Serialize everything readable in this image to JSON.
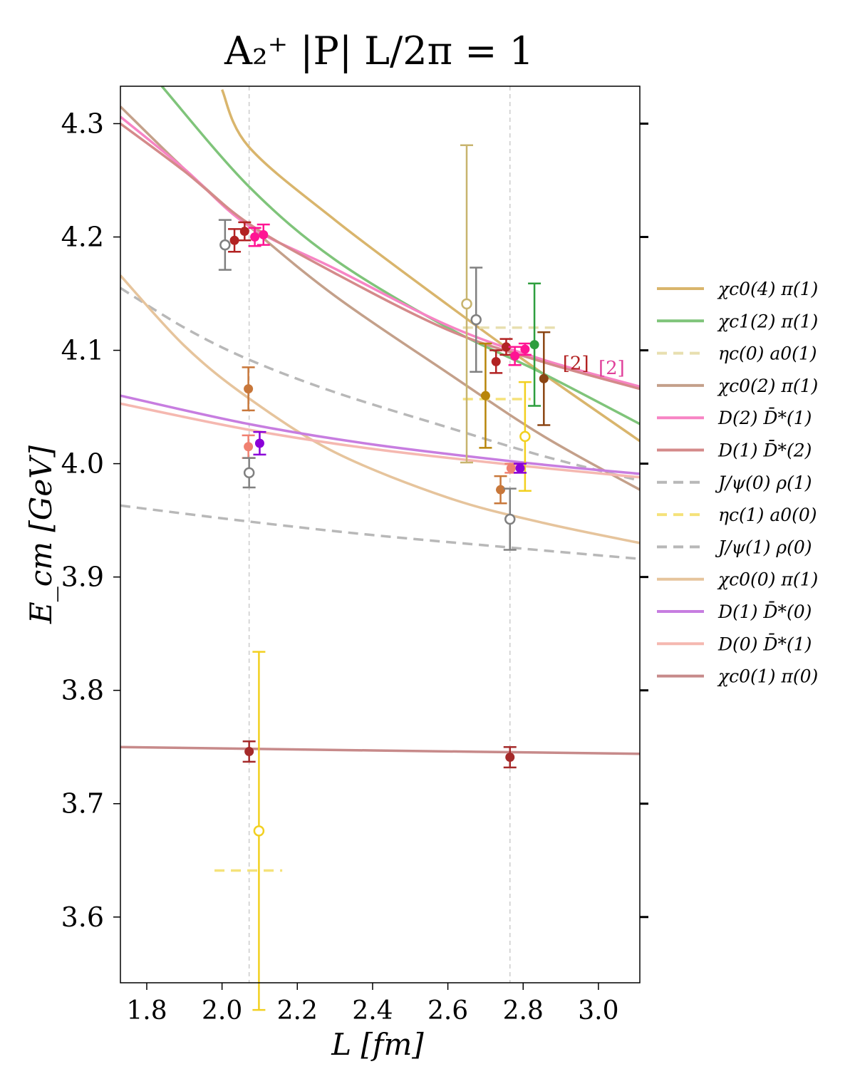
{
  "chart_data": {
    "type": "scatter",
    "title": "A₂⁺ |P| L/2π = 1",
    "xlabel": "L [fm]",
    "ylabel": "E_cm [GeV]",
    "xlim": [
      1.73,
      3.11
    ],
    "ylim": [
      3.542,
      4.333
    ],
    "xticks": [
      "1.8",
      "2.0",
      "2.2",
      "2.4",
      "2.6",
      "2.8",
      "3.0"
    ],
    "yticks": [
      "3.6",
      "3.7",
      "3.8",
      "3.9",
      "4.0",
      "4.1",
      "4.2",
      "4.3"
    ],
    "grid": false,
    "legend_position": "right",
    "vlines": [
      2.072,
      2.765
    ],
    "curves": [
      {
        "name": "χc0(4) π(1)",
        "color": "#d9b56c",
        "style": "solid",
        "points": [
          [
            2.0,
            4.33
          ],
          [
            2.07,
            4.28
          ],
          [
            2.3,
            4.215
          ],
          [
            2.6,
            4.14
          ],
          [
            2.85,
            4.08
          ],
          [
            3.11,
            4.02
          ]
        ]
      },
      {
        "name": "χc1(2) π(1)",
        "color": "#7fc47a",
        "style": "solid",
        "points": [
          [
            1.84,
            4.333
          ],
          [
            2.07,
            4.245
          ],
          [
            2.3,
            4.18
          ],
          [
            2.6,
            4.12
          ],
          [
            2.85,
            4.08
          ],
          [
            3.11,
            4.035
          ]
        ]
      },
      {
        "name": "χc0(2) π(1)",
        "color": "#c4a08a",
        "style": "solid",
        "points": [
          [
            1.73,
            4.315
          ],
          [
            1.9,
            4.26
          ],
          [
            2.07,
            4.21
          ],
          [
            2.3,
            4.148
          ],
          [
            2.6,
            4.08
          ],
          [
            2.85,
            4.025
          ],
          [
            3.11,
            3.977
          ]
        ]
      },
      {
        "name": "D(2) D̄*(1)",
        "color": "#f784c4",
        "style": "solid",
        "points": [
          [
            1.73,
            4.306
          ],
          [
            1.9,
            4.26
          ],
          [
            2.07,
            4.21
          ],
          [
            2.3,
            4.172
          ],
          [
            2.6,
            4.122
          ],
          [
            2.85,
            4.092
          ],
          [
            3.11,
            4.068
          ]
        ]
      },
      {
        "name": "D(1) D̄*(2)",
        "color": "#d48a8a",
        "style": "solid",
        "points": [
          [
            1.73,
            4.3
          ],
          [
            1.9,
            4.258
          ],
          [
            2.07,
            4.212
          ],
          [
            2.3,
            4.168
          ],
          [
            2.6,
            4.118
          ],
          [
            2.85,
            4.09
          ],
          [
            3.11,
            4.066
          ]
        ]
      },
      {
        "name": "J/ψ(0) ρ(1)",
        "color": "#b8b8b8",
        "style": "dashed",
        "points": [
          [
            1.73,
            4.155
          ],
          [
            1.9,
            4.12
          ],
          [
            2.07,
            4.092
          ],
          [
            2.3,
            4.063
          ],
          [
            2.6,
            4.032
          ],
          [
            2.85,
            4.007
          ],
          [
            3.11,
            3.985
          ]
        ]
      },
      {
        "name": "J/ψ(1) ρ(0)",
        "color": "#b8b8b8",
        "style": "dashed",
        "points": [
          [
            1.73,
            3.963
          ],
          [
            2.07,
            3.949
          ],
          [
            2.4,
            3.937
          ],
          [
            2.8,
            3.925
          ],
          [
            3.11,
            3.916
          ]
        ]
      },
      {
        "name": "χc0(0) π(1)",
        "color": "#e6c49c",
        "style": "solid",
        "points": [
          [
            1.73,
            4.166
          ],
          [
            1.9,
            4.104
          ],
          [
            2.07,
            4.058
          ],
          [
            2.3,
            4.01
          ],
          [
            2.6,
            3.97
          ],
          [
            2.85,
            3.948
          ],
          [
            3.11,
            3.93
          ]
        ]
      },
      {
        "name": "D(1) D̄*(0)",
        "color": "#c77de0",
        "style": "solid",
        "points": [
          [
            1.73,
            4.06
          ],
          [
            2.07,
            4.035
          ],
          [
            2.4,
            4.017
          ],
          [
            2.8,
            4.001
          ],
          [
            3.11,
            3.991
          ]
        ]
      },
      {
        "name": "D(0) D̄*(1)",
        "color": "#f5b8b0",
        "style": "solid",
        "points": [
          [
            1.73,
            4.053
          ],
          [
            2.07,
            4.03
          ],
          [
            2.4,
            4.013
          ],
          [
            2.8,
            3.998
          ],
          [
            3.11,
            3.988
          ]
        ]
      },
      {
        "name": "χc0(1) π(0)",
        "color": "#c78a8a",
        "style": "solid",
        "points": [
          [
            1.73,
            3.75
          ],
          [
            2.4,
            3.747
          ],
          [
            3.11,
            3.744
          ]
        ]
      }
    ],
    "hsegments": [
      {
        "name": "ηc(0) a0(1)",
        "color": "#e8dfb0",
        "y": 4.12,
        "x": [
          2.64,
          2.9
        ]
      },
      {
        "name": "ηc(1) a0(0)",
        "color": "#f5e27a",
        "y": 4.057,
        "x": [
          2.64,
          2.82
        ]
      },
      {
        "name": "ηc(1) a0(0)",
        "color": "#f5e27a",
        "y": 3.641,
        "x": [
          1.98,
          2.16
        ]
      }
    ],
    "points": [
      {
        "x": 2.008,
        "y": 4.193,
        "err": 0.022,
        "color": "#808080",
        "open": true
      },
      {
        "x": 2.033,
        "y": 4.197,
        "err": 0.01,
        "color": "#b22222",
        "open": false
      },
      {
        "x": 2.06,
        "y": 4.205,
        "err": 0.008,
        "color": "#b22222",
        "open": false
      },
      {
        "x": 2.087,
        "y": 4.2,
        "err": 0.008,
        "color": "#ff1493",
        "open": false
      },
      {
        "x": 2.11,
        "y": 4.202,
        "err": 0.009,
        "color": "#ff1493",
        "open": false
      },
      {
        "x": 2.07,
        "y": 4.066,
        "err": 0.019,
        "color": "#c8773a",
        "open": false
      },
      {
        "x": 2.07,
        "y": 4.015,
        "err": 0.01,
        "color": "#f08070",
        "open": false
      },
      {
        "x": 2.1,
        "y": 4.018,
        "err": 0.01,
        "color": "#8b00d8",
        "open": false
      },
      {
        "x": 2.072,
        "y": 3.992,
        "err": 0.013,
        "color": "#808080",
        "open": true
      },
      {
        "x": 2.072,
        "y": 3.746,
        "err": 0.009,
        "color": "#a52a2a",
        "open": false
      },
      {
        "x": 2.098,
        "y": 3.676,
        "err": 0.158,
        "color": "#f2d020",
        "open": true
      },
      {
        "x": 2.65,
        "y": 4.141,
        "err": 0.14,
        "color": "#c8b46e",
        "open": true
      },
      {
        "x": 2.675,
        "y": 4.127,
        "err": 0.046,
        "color": "#808080",
        "open": true
      },
      {
        "x": 2.7,
        "y": 4.06,
        "err": 0.046,
        "color": "#b8860b",
        "open": false
      },
      {
        "x": 2.728,
        "y": 4.09,
        "err": 0.01,
        "color": "#b22222",
        "open": false
      },
      {
        "x": 2.755,
        "y": 4.103,
        "err": 0.007,
        "color": "#b22222",
        "open": false
      },
      {
        "x": 2.778,
        "y": 4.095,
        "err": 0.008,
        "color": "#ff1493",
        "open": false
      },
      {
        "x": 2.805,
        "y": 4.101,
        "err": 0.005,
        "color": "#ff1493",
        "open": false
      },
      {
        "x": 2.83,
        "y": 4.105,
        "err": 0.054,
        "color": "#2e9e3e",
        "open": false
      },
      {
        "x": 2.855,
        "y": 4.075,
        "err": 0.041,
        "color": "#8b4513",
        "open": false
      },
      {
        "x": 2.805,
        "y": 4.024,
        "err": 0.048,
        "color": "#f2d020",
        "open": true
      },
      {
        "x": 2.74,
        "y": 3.977,
        "err": 0.012,
        "color": "#c8773a",
        "open": false
      },
      {
        "x": 2.765,
        "y": 3.951,
        "err": 0.027,
        "color": "#808080",
        "open": true
      },
      {
        "x": 2.768,
        "y": 3.996,
        "err": 0.004,
        "color": "#f08070",
        "open": false
      },
      {
        "x": 2.792,
        "y": 3.996,
        "err": 0.004,
        "color": "#8b00d8",
        "open": false
      },
      {
        "x": 2.765,
        "y": 3.741,
        "err": 0.009,
        "color": "#a52a2a",
        "open": false
      }
    ],
    "annotations": [
      {
        "text": "[2]",
        "x": 2.94,
        "y": 4.083,
        "color": "#b22222"
      },
      {
        "text": "[2]",
        "x": 3.035,
        "y": 4.079,
        "color": "#e0409a"
      }
    ],
    "legend": [
      {
        "label": "χc0(4) π(1)",
        "color": "#d9b56c",
        "style": "solid"
      },
      {
        "label": "χc1(2) π(1)",
        "color": "#7fc47a",
        "style": "solid"
      },
      {
        "label": "ηc(0) a0(1)",
        "color": "#e8dfb0",
        "style": "dashed"
      },
      {
        "label": "χc0(2) π(1)",
        "color": "#c4a08a",
        "style": "solid"
      },
      {
        "label": "D(2) D̄*(1)",
        "color": "#f784c4",
        "style": "solid"
      },
      {
        "label": "D(1) D̄*(2)",
        "color": "#d48a8a",
        "style": "solid"
      },
      {
        "label": "J/ψ(0) ρ(1)",
        "color": "#b8b8b8",
        "style": "dashed"
      },
      {
        "label": "ηc(1) a0(0)",
        "color": "#f5e27a",
        "style": "dashed"
      },
      {
        "label": "J/ψ(1) ρ(0)",
        "color": "#b8b8b8",
        "style": "dashed"
      },
      {
        "label": "χc0(0) π(1)",
        "color": "#e6c49c",
        "style": "solid"
      },
      {
        "label": "D(1) D̄*(0)",
        "color": "#c77de0",
        "style": "solid"
      },
      {
        "label": "D(0) D̄*(1)",
        "color": "#f5b8b0",
        "style": "solid"
      },
      {
        "label": "χc0(1) π(0)",
        "color": "#c78a8a",
        "style": "solid"
      }
    ]
  }
}
